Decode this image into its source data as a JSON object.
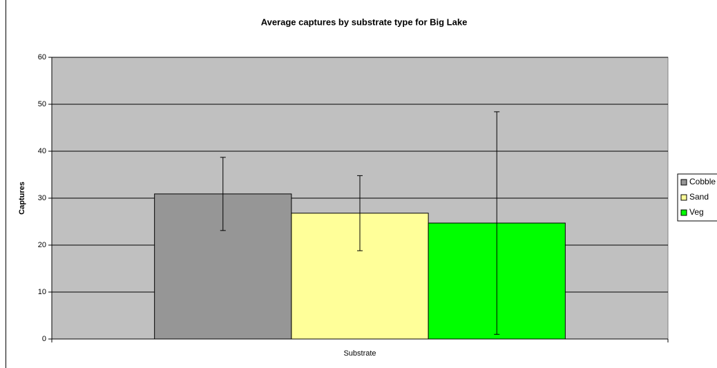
{
  "chart_data": {
    "type": "bar",
    "title": "Average captures by substrate type for Big Lake",
    "x_label": "Substrate",
    "y_label": "Captures",
    "categories": [
      null
    ],
    "series": [
      {
        "name": "Cobble",
        "color": "#969696",
        "values": [
          30.9
        ],
        "errors": [
          7.8
        ]
      },
      {
        "name": "Sand",
        "color": "#ffff99",
        "values": [
          26.8
        ],
        "errors": [
          8.0
        ]
      },
      {
        "name": "Veg",
        "color": "#00ff00",
        "values": [
          24.7
        ],
        "errors": [
          23.7
        ]
      }
    ],
    "ylim": [
      0,
      60
    ],
    "yticks": [
      0,
      10,
      20,
      30,
      40,
      50,
      60
    ],
    "grid": true,
    "legend": "right"
  }
}
